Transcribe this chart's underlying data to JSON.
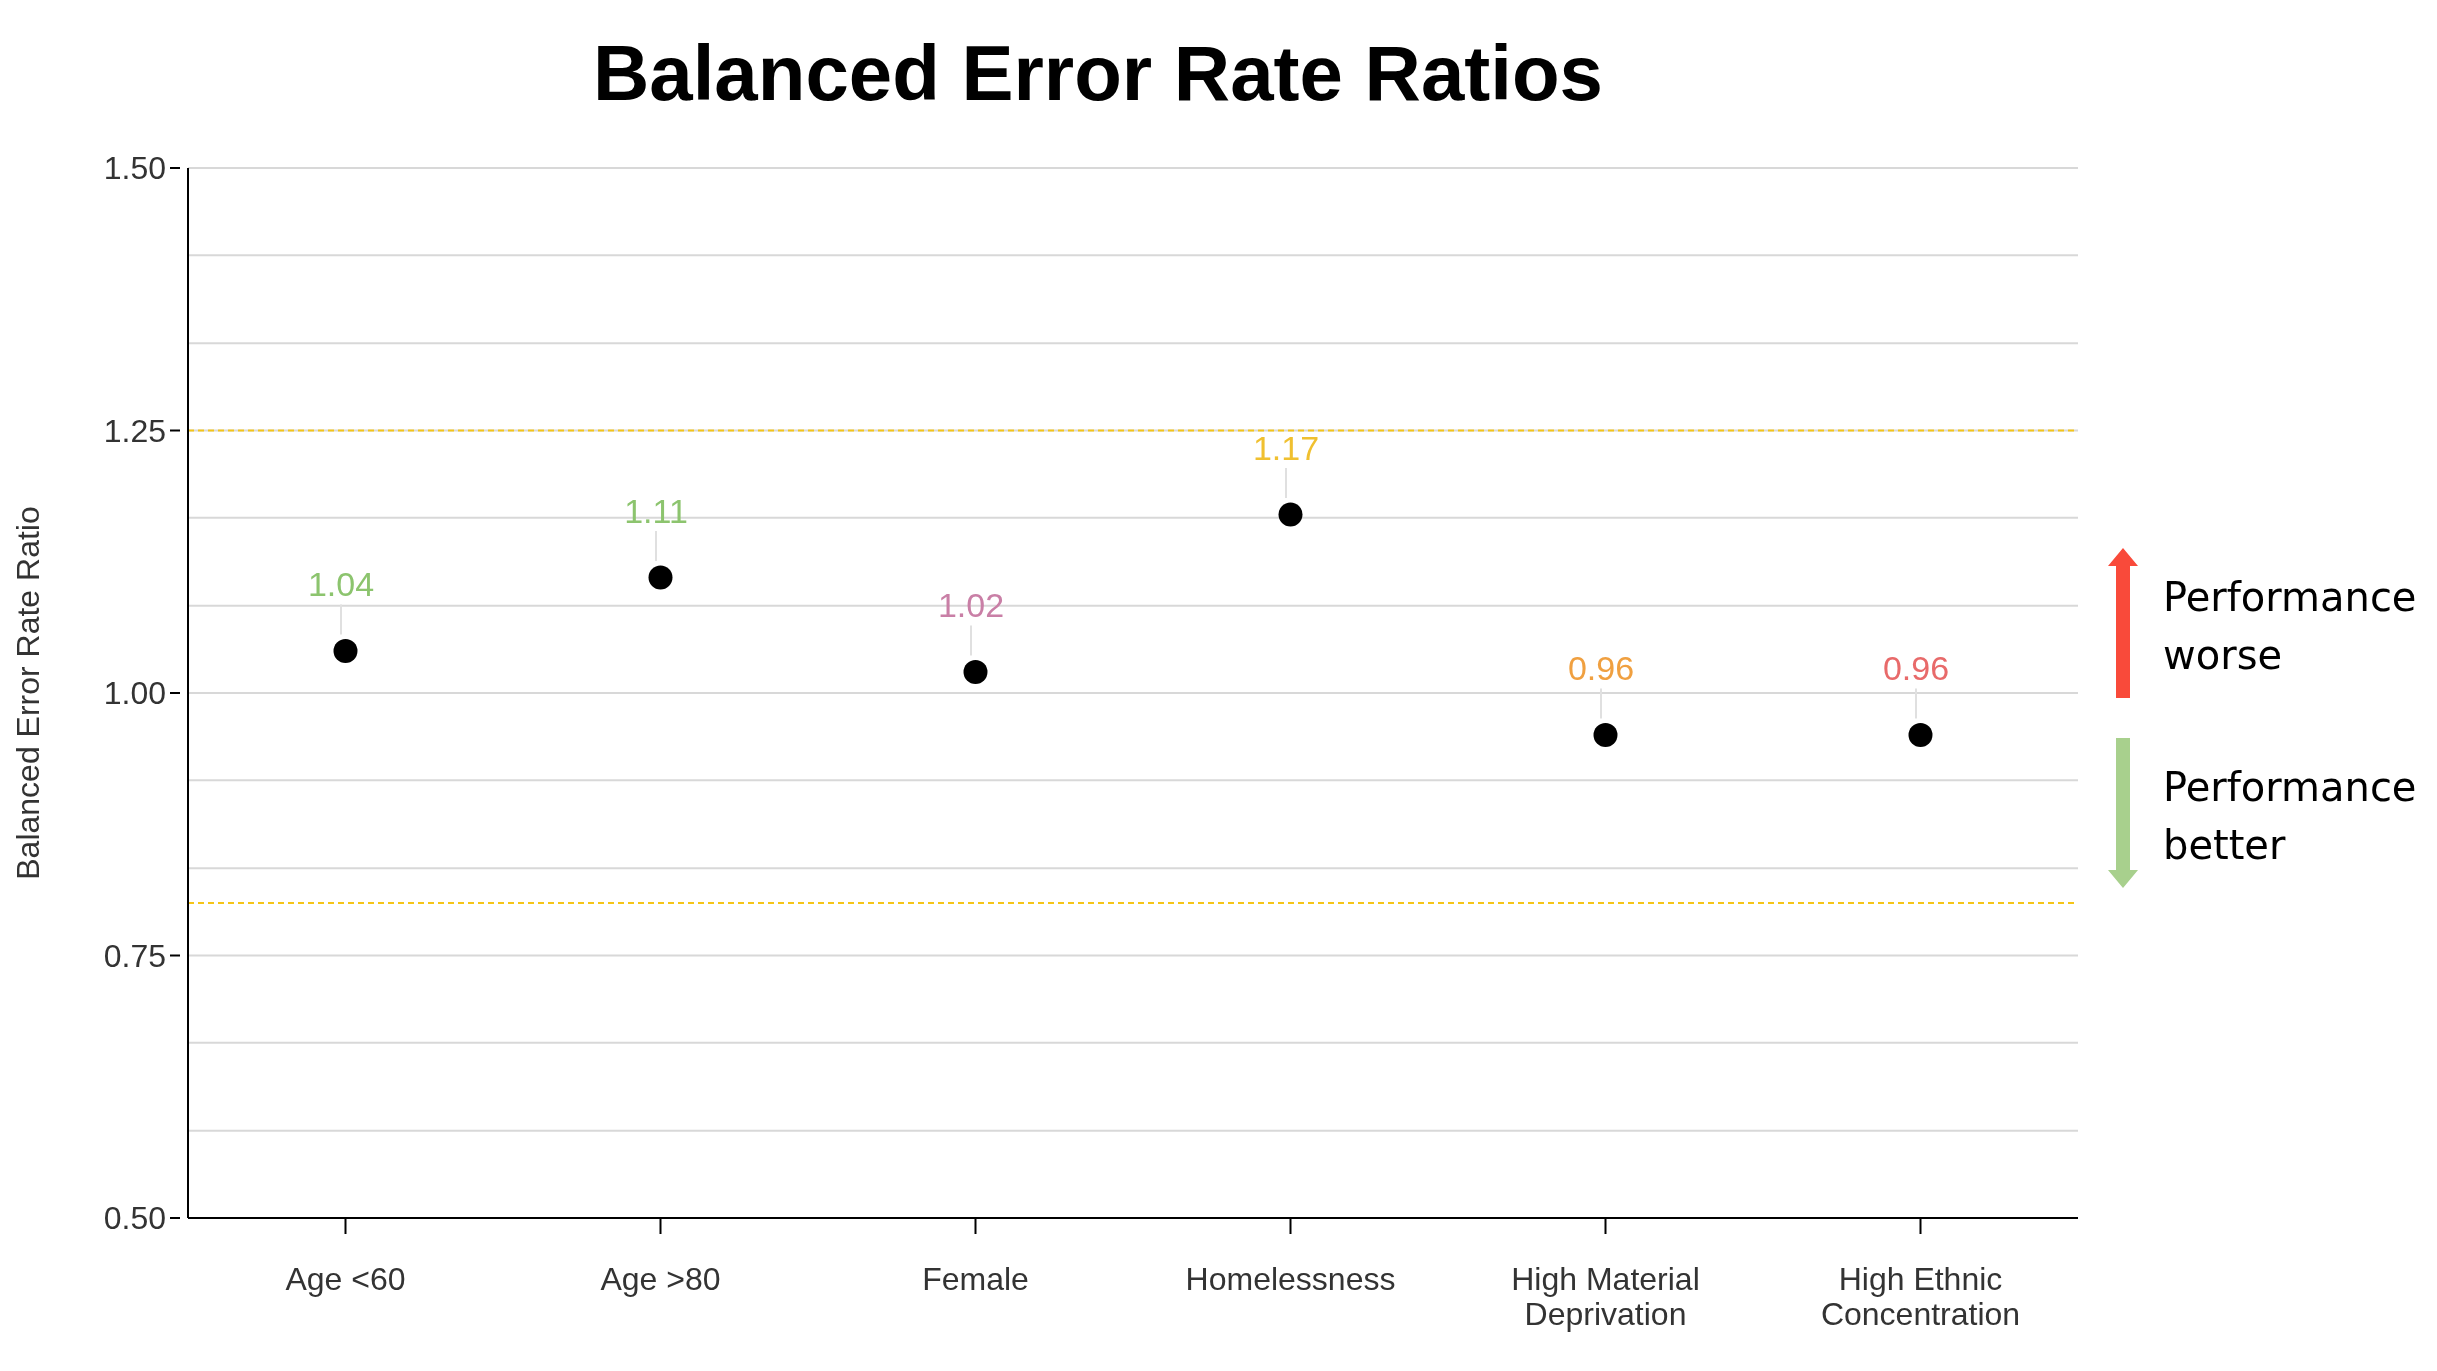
{
  "chart_data": {
    "type": "scatter",
    "title": "Balanced Error Rate Ratios",
    "ylabel": "Balanced Error Rate Ratio",
    "categories": [
      "Age <60",
      "Age >80",
      "Female",
      "Homelessness",
      "High Material Deprivation",
      "High Ethnic Concentration"
    ],
    "values": [
      1.04,
      1.11,
      1.02,
      1.17,
      0.96,
      0.96
    ],
    "color": "#000000",
    "marker": "circle",
    "data_labels": true,
    "ylim": [
      0.5,
      1.5
    ],
    "yticks": [
      {
        "value": 0.5,
        "label": "0.50"
      },
      {
        "value": 0.583,
        "label": null
      },
      {
        "value": 0.667,
        "label": null
      },
      {
        "value": 0.75,
        "label": "0.75"
      },
      {
        "value": 0.833,
        "label": null
      },
      {
        "value": 0.917,
        "label": null
      },
      {
        "value": 1,
        "label": "1.00"
      },
      {
        "value": 1.083,
        "label": null
      },
      {
        "value": 1.167,
        "label": null
      },
      1.25,
      {
        "value": 1.333,
        "label": null
      },
      {
        "value": 1.417,
        "label": null
      },
      {
        "value": 1.5,
        "label": "1.50"
      }
    ],
    "grid": "y",
    "ref_lines": [
      {
        "axis": "y",
        "value": 1.25,
        "color": "#f5c518",
        "line_style": "dashed"
      },
      {
        "axis": "y",
        "value": 0.8,
        "color": "#f5c518",
        "line_style": "dashed"
      }
    ],
    "annotations": [
      "Performance worse",
      "Performance better"
    ]
  }
}
